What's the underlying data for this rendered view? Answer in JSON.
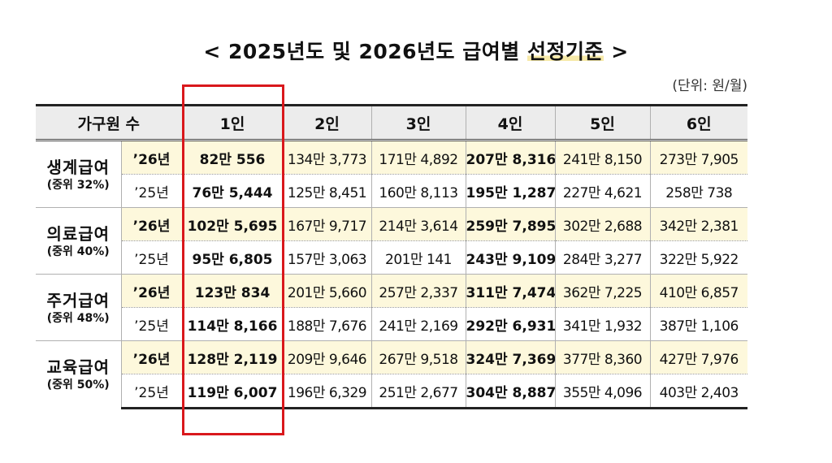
{
  "title": {
    "prefix": "< 2025년도 및 2026년도 급여별 ",
    "highlight": "선정기준",
    "suffix": " >"
  },
  "unit_note": "(단위: 원/월)",
  "table": {
    "header": {
      "household": "가구원 수",
      "p1": "1인",
      "p2": "2인",
      "p3": "3인",
      "p4": "4인",
      "p5": "5인",
      "p6": "6인"
    },
    "groups": [
      {
        "name": "생계급여",
        "sub": "(중위 32%)",
        "y26": {
          "year": "’26년",
          "v": [
            "82만 556",
            "134만 3,773",
            "171만 4,892",
            "207만 8,316",
            "241만 8,150",
            "273만 7,905"
          ]
        },
        "y25": {
          "year": "’25년",
          "v": [
            "76만 5,444",
            "125만 8,451",
            "160만 8,113",
            "195만 1,287",
            "227만 4,621",
            "258만 738"
          ]
        }
      },
      {
        "name": "의료급여",
        "sub": "(중위 40%)",
        "y26": {
          "year": "’26년",
          "v": [
            "102만 5,695",
            "167만 9,717",
            "214만 3,614",
            "259만 7,895",
            "302만 2,688",
            "342만 2,381"
          ]
        },
        "y25": {
          "year": "’25년",
          "v": [
            "95만 6,805",
            "157만 3,063",
            "201만 141",
            "243만 9,109",
            "284만 3,277",
            "322만 5,922"
          ]
        }
      },
      {
        "name": "주거급여",
        "sub": "(중위 48%)",
        "y26": {
          "year": "’26년",
          "v": [
            "123만 834",
            "201만 5,660",
            "257만 2,337",
            "311만 7,474",
            "362만 7,225",
            "410만 6,857"
          ]
        },
        "y25": {
          "year": "’25년",
          "v": [
            "114만 8,166",
            "188만 7,676",
            "241만 2,169",
            "292만 6,931",
            "341만 1,932",
            "387만 1,106"
          ]
        }
      },
      {
        "name": "교육급여",
        "sub": "(중위 50%)",
        "y26": {
          "year": "’26년",
          "v": [
            "128만 2,119",
            "209만 9,646",
            "267만 9,518",
            "324만 7,369",
            "377만 8,360",
            "427만 7,976"
          ]
        },
        "y25": {
          "year": "’25년",
          "v": [
            "119만 6,007",
            "196만 6,329",
            "251만 2,677",
            "304만 8,887",
            "355만 4,096",
            "403만 2,403"
          ]
        }
      }
    ]
  },
  "colors": {
    "highlight_box": "#d9181c",
    "row_2026_bg": "#fdf8dc",
    "header_bg": "#ececec"
  }
}
